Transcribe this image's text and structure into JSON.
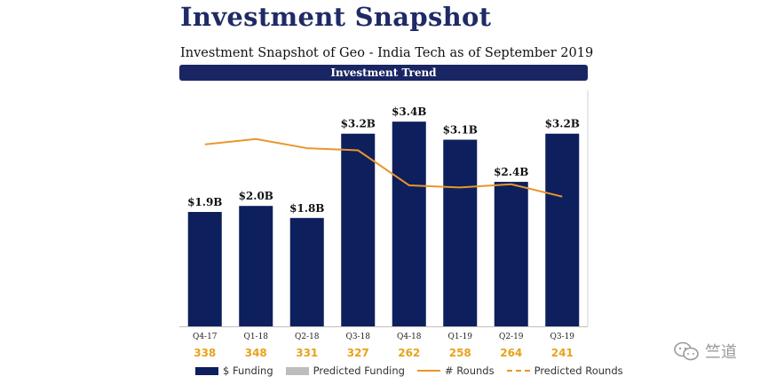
{
  "header": {
    "title": "Investment Snapshot",
    "subtitle": "Investment Snapshot of Geo - India Tech as of September 2019",
    "section_label": "Investment Trend"
  },
  "colors": {
    "bar": "#0d1f5c",
    "predicted_bar": "#bdbdbd",
    "line": "#e8962a",
    "rounds_text": "#e8a21a"
  },
  "chart_data": {
    "type": "bar",
    "title": "Investment Trend",
    "categories": [
      "Q4-17",
      "Q1-18",
      "Q2-18",
      "Q3-18",
      "Q4-18",
      "Q1-19",
      "Q2-19",
      "Q3-19"
    ],
    "series": [
      {
        "name": "$ Funding",
        "type": "bar",
        "axis": "left",
        "values": [
          1.9,
          2.0,
          1.8,
          3.2,
          3.4,
          3.1,
          2.4,
          3.2
        ],
        "value_labels": [
          "$1.9B",
          "$2.0B",
          "$1.8B",
          "$3.2B",
          "$3.4B",
          "$3.1B",
          "$2.4B",
          "$3.2B"
        ]
      },
      {
        "name": "# Rounds",
        "type": "line",
        "axis": "right",
        "values": [
          338,
          348,
          331,
          327,
          262,
          258,
          264,
          241
        ]
      }
    ],
    "ylim": [
      0,
      3.8
    ],
    "y2lim": [
      0,
      425
    ],
    "grid": false,
    "legend": {
      "position": "bottom",
      "entries": [
        {
          "label": "$ Funding",
          "kind": "box",
          "color": "#0d1f5c"
        },
        {
          "label": "Predicted Funding",
          "kind": "box",
          "color": "#bdbdbd"
        },
        {
          "label": "# Rounds",
          "kind": "line",
          "color": "#e8962a"
        },
        {
          "label": "Predicted Rounds",
          "kind": "dash",
          "color": "#e8962a"
        }
      ]
    }
  },
  "watermark": {
    "text": "竺道"
  }
}
